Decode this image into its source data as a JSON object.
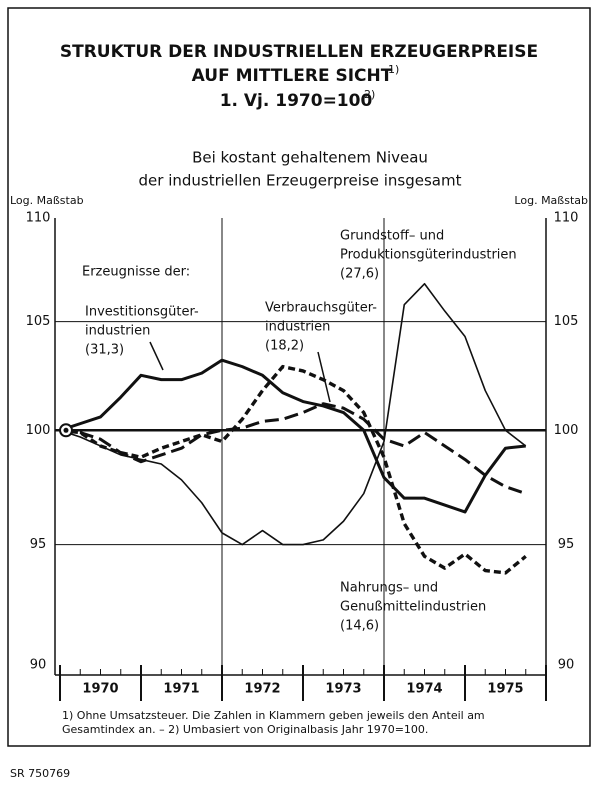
{
  "chart_data": {
    "type": "line",
    "title_lines": [
      "STRUKTUR DER INDUSTRIELLEN ERZEUGERPREISE",
      "AUF MITTLERE SICHT",
      "1. Vj. 1970=100"
    ],
    "title_notes": [
      "1)",
      "2)"
    ],
    "subtitle_lines": [
      "Bei kostant gehaltenem Niveau",
      "der industriellen Erzeugerpreise insgesamt"
    ],
    "y_axis_label": "Log. Maßstab",
    "y2_axis_label": "Log. Maßstab",
    "annotation": "Erzeugnisse der:",
    "footnote_lines": [
      "1) Ohne Umsatzsteuer. Die Zahlen in Klammern geben jeweils den Anteil am",
      "Gesamtindex an. – 2) Umbasiert von Originalbasis Jahr 1970=100."
    ],
    "source": "SR 750769",
    "log_scale": true,
    "ylim": [
      90,
      110
    ],
    "yticks": [
      90,
      95,
      100,
      105,
      110
    ],
    "y2ticks": [
      90,
      95,
      100,
      105,
      110
    ],
    "grid": true,
    "xlim": [
      1970,
      1976
    ],
    "xticks": [
      1970,
      1971,
      1972,
      1973,
      1974,
      1975,
      1976
    ],
    "year_labels": [
      "1970",
      "1971",
      "1972",
      "1973",
      "1974",
      "1975"
    ],
    "xgrid": [
      1972,
      1974
    ],
    "x": [
      1970,
      1970.25,
      1970.5,
      1970.75,
      1971,
      1971.25,
      1971.5,
      1971.75,
      1972,
      1972.25,
      1972.5,
      1972.75,
      1973,
      1973.25,
      1973.5,
      1973.75,
      1974,
      1974.25,
      1974.5,
      1974.75,
      1975,
      1975.25,
      1975.5,
      1975.75
    ],
    "series": [
      {
        "name_lines": [
          "Investitionsgüter-",
          "industrien"
        ],
        "share": "(31,3)",
        "color": "#111111",
        "width": 3,
        "dash": "none",
        "values": [
          100,
          100.3,
          100.6,
          101.5,
          102.5,
          102.3,
          102.3,
          102.6,
          103.2,
          102.9,
          102.5,
          101.7,
          101.3,
          101.1,
          100.8,
          100.0,
          97.9,
          97.0,
          97.0,
          96.7,
          96.4,
          98.0,
          99.2,
          99.3
        ]
      },
      {
        "name_lines": [
          "Grundstoff– und",
          "Produktionsgüterindustrien"
        ],
        "share": "(27,6)",
        "color": "#111111",
        "width": 1.6,
        "dash": "none",
        "values": [
          100,
          99.7,
          99.3,
          98.9,
          98.7,
          98.5,
          97.8,
          96.8,
          95.5,
          95.0,
          95.6,
          95.0,
          95.0,
          95.2,
          96.0,
          97.2,
          99.5,
          105.8,
          106.8,
          105.5,
          104.3,
          101.8,
          100.0,
          99.3
        ]
      },
      {
        "name_lines": [
          "Verbrauchsgüter-",
          "industrien"
        ],
        "share": "(18,2)",
        "color": "#111111",
        "width": 3,
        "dash": "14,6",
        "values": [
          100,
          99.9,
          99.6,
          99.0,
          98.6,
          98.9,
          99.2,
          99.8,
          100.0,
          100.1,
          100.4,
          100.5,
          100.8,
          101.2,
          101.0,
          100.5,
          99.6,
          99.3,
          99.9,
          99.3,
          98.7,
          98.0,
          97.5,
          97.2
        ]
      },
      {
        "name_lines": [
          "Nahrungs– und",
          "Genußmittelindustrien"
        ],
        "share": "(14,6)",
        "color": "#111111",
        "width": 3.4,
        "dash": "7,4",
        "values": [
          100,
          99.9,
          99.3,
          99.0,
          98.8,
          99.2,
          99.5,
          99.8,
          99.5,
          100.5,
          101.8,
          102.9,
          102.7,
          102.3,
          101.8,
          100.8,
          98.8,
          95.9,
          94.5,
          94.0,
          94.6,
          93.9,
          93.8,
          94.5
        ]
      }
    ]
  }
}
